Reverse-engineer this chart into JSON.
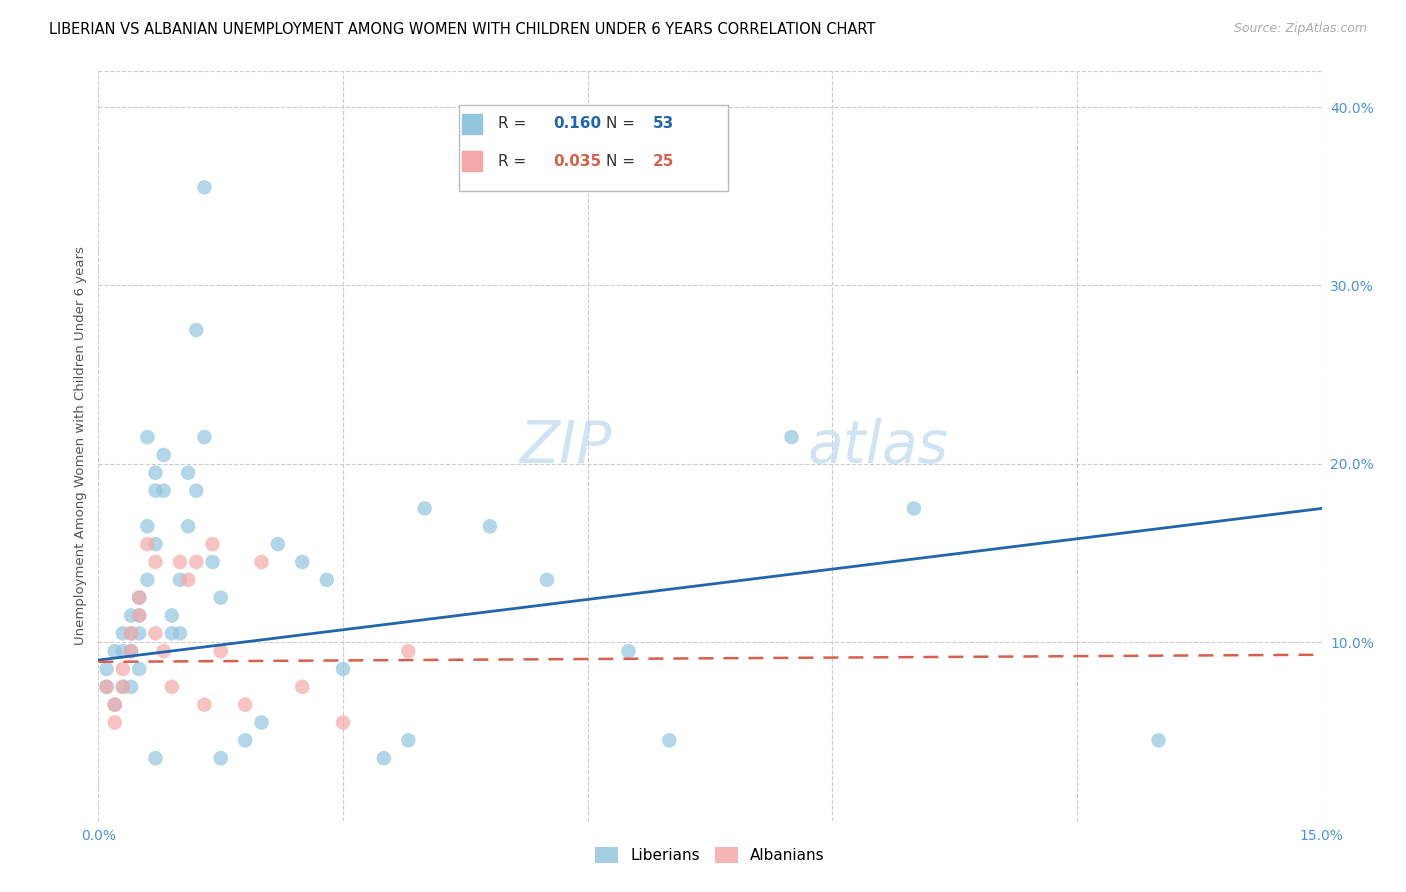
{
  "title": "LIBERIAN VS ALBANIAN UNEMPLOYMENT AMONG WOMEN WITH CHILDREN UNDER 6 YEARS CORRELATION CHART",
  "source": "Source: ZipAtlas.com",
  "ylabel": "Unemployment Among Women with Children Under 6 years",
  "xlim": [
    0.0,
    0.15
  ],
  "ylim": [
    0.0,
    0.42
  ],
  "xticks": [
    0.0,
    0.03,
    0.06,
    0.09,
    0.12,
    0.15
  ],
  "xtick_labels": [
    "0.0%",
    "",
    "",
    "",
    "",
    "15.0%"
  ],
  "yticks_right": [
    0.1,
    0.2,
    0.3,
    0.4
  ],
  "ytick_right_labels": [
    "10.0%",
    "20.0%",
    "30.0%",
    "40.0%"
  ],
  "liberian_color": "#92c5de",
  "albanian_color": "#f4a9a8",
  "liberian_line_color": "#2166ac",
  "albanian_line_color": "#d6604d",
  "background_color": "#ffffff",
  "grid_color": "#cccccc",
  "watermark_zip": "ZIP",
  "watermark_atlas": "atlas",
  "liberian_x": [
    0.001,
    0.001,
    0.002,
    0.002,
    0.003,
    0.003,
    0.003,
    0.004,
    0.004,
    0.004,
    0.004,
    0.005,
    0.005,
    0.005,
    0.005,
    0.006,
    0.006,
    0.006,
    0.007,
    0.007,
    0.007,
    0.007,
    0.008,
    0.008,
    0.009,
    0.009,
    0.01,
    0.01,
    0.011,
    0.011,
    0.012,
    0.012,
    0.013,
    0.013,
    0.014,
    0.015,
    0.015,
    0.018,
    0.02,
    0.022,
    0.025,
    0.028,
    0.03,
    0.035,
    0.038,
    0.04,
    0.048,
    0.055,
    0.065,
    0.07,
    0.085,
    0.1,
    0.13
  ],
  "liberian_y": [
    0.085,
    0.075,
    0.095,
    0.065,
    0.105,
    0.095,
    0.075,
    0.115,
    0.105,
    0.095,
    0.075,
    0.125,
    0.115,
    0.105,
    0.085,
    0.215,
    0.165,
    0.135,
    0.195,
    0.185,
    0.155,
    0.035,
    0.205,
    0.185,
    0.115,
    0.105,
    0.135,
    0.105,
    0.195,
    0.165,
    0.275,
    0.185,
    0.355,
    0.215,
    0.145,
    0.125,
    0.035,
    0.045,
    0.055,
    0.155,
    0.145,
    0.135,
    0.085,
    0.035,
    0.045,
    0.175,
    0.165,
    0.135,
    0.095,
    0.045,
    0.215,
    0.175,
    0.045
  ],
  "albanian_x": [
    0.001,
    0.002,
    0.002,
    0.003,
    0.003,
    0.004,
    0.004,
    0.005,
    0.005,
    0.006,
    0.007,
    0.007,
    0.008,
    0.009,
    0.01,
    0.011,
    0.012,
    0.013,
    0.014,
    0.015,
    0.018,
    0.02,
    0.025,
    0.03,
    0.038
  ],
  "albanian_y": [
    0.075,
    0.065,
    0.055,
    0.085,
    0.075,
    0.105,
    0.095,
    0.125,
    0.115,
    0.155,
    0.145,
    0.105,
    0.095,
    0.075,
    0.145,
    0.135,
    0.145,
    0.065,
    0.155,
    0.095,
    0.065,
    0.145,
    0.075,
    0.055,
    0.095
  ],
  "lib_trend_x0": 0.0,
  "lib_trend_y0": 0.09,
  "lib_trend_x1": 0.15,
  "lib_trend_y1": 0.175,
  "alb_trend_x0": 0.0,
  "alb_trend_y0": 0.089,
  "alb_trend_x1": 0.15,
  "alb_trend_y1": 0.093,
  "title_fontsize": 10.5,
  "source_fontsize": 9,
  "axis_label_fontsize": 9.5,
  "tick_fontsize": 10,
  "legend_fontsize": 11,
  "watermark_fontsize_zip": 42,
  "watermark_fontsize_atlas": 42
}
